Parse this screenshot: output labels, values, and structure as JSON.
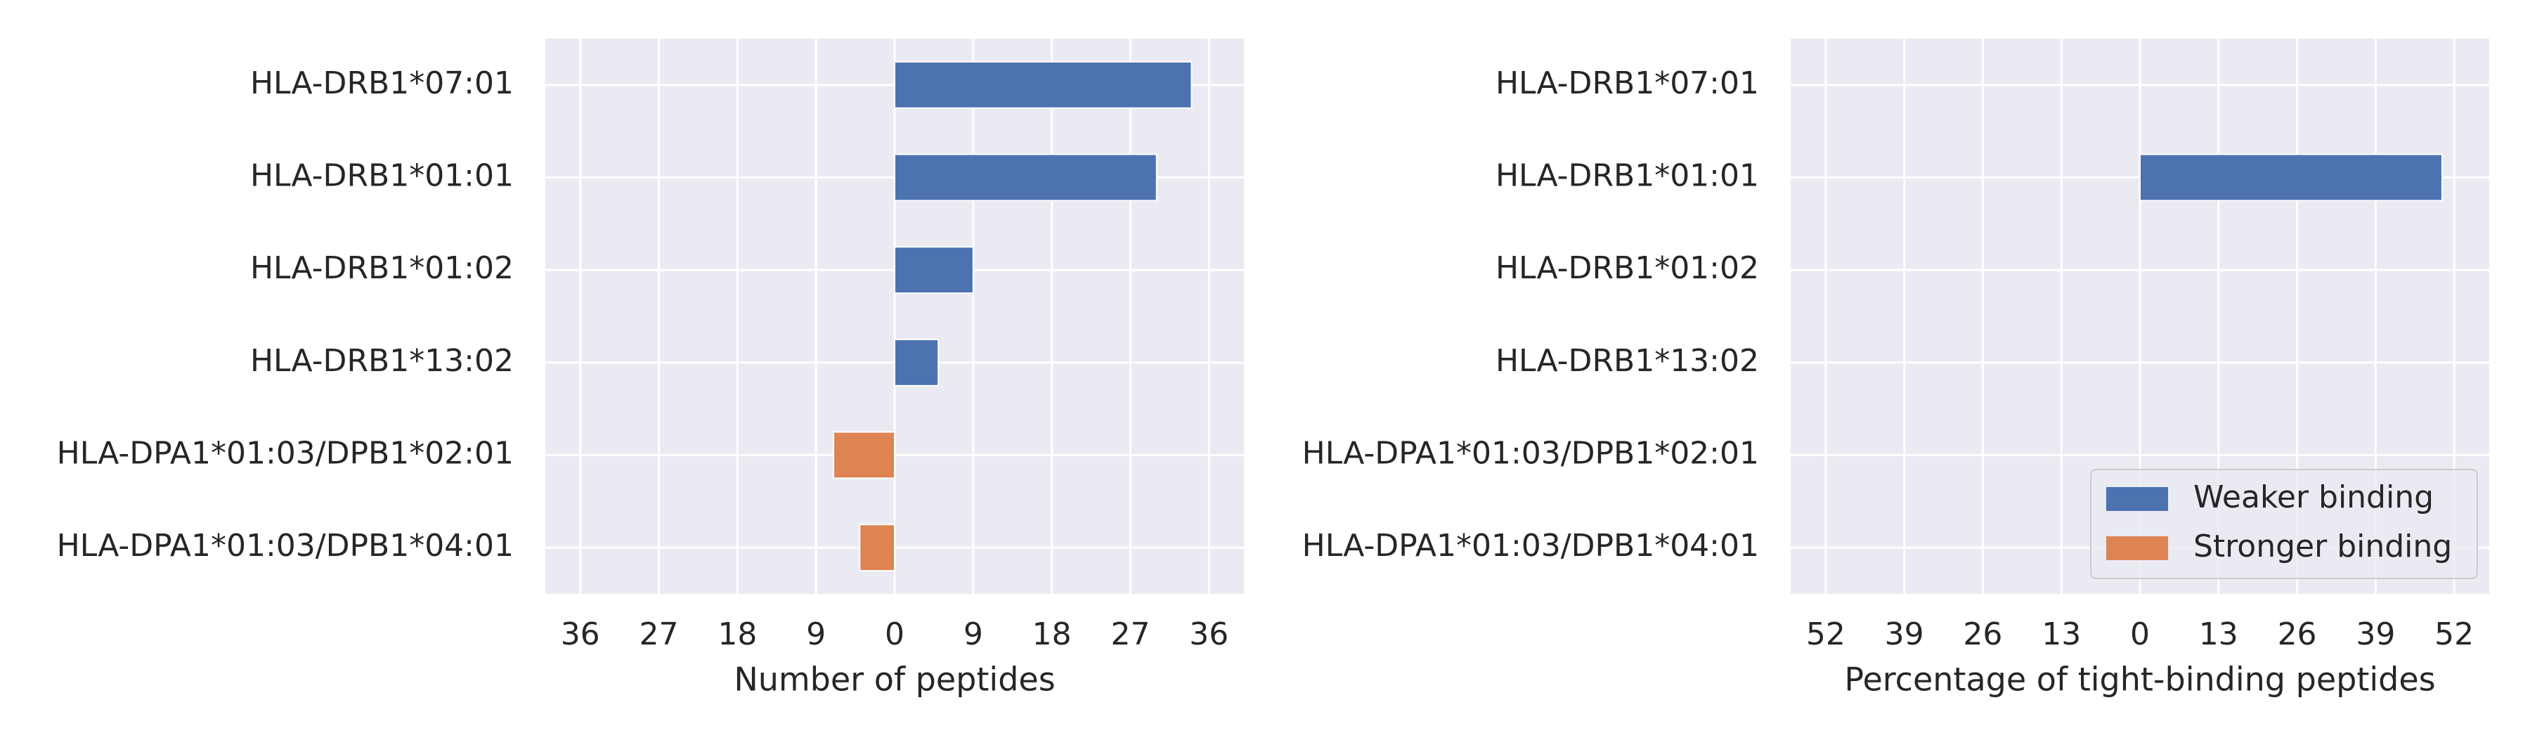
{
  "colors": {
    "panel_background": "#eaeaf2",
    "grid": "#ffffff",
    "weaker": "#4c72b0",
    "stronger": "#dd8452",
    "text": "#262626"
  },
  "chart_data": [
    {
      "type": "bar",
      "orientation": "horizontal",
      "categories": [
        "HLA-DRB1*07:01",
        "HLA-DRB1*01:01",
        "HLA-DRB1*01:02",
        "HLA-DRB1*13:02",
        "HLA-DPA1*01:03/DPB1*02:01",
        "HLA-DPA1*01:03/DPB1*04:01"
      ],
      "series": [
        {
          "name": "Weaker binding",
          "color": "#4c72b0",
          "values": [
            34,
            30,
            9,
            5,
            0,
            0
          ]
        },
        {
          "name": "Stronger binding",
          "color": "#dd8452",
          "values": [
            0,
            0,
            0,
            0,
            -7,
            -4
          ]
        }
      ],
      "xlabel": "Number of peptides",
      "xlim": [
        -40,
        40
      ],
      "ticks": [
        -36,
        -27,
        -18,
        -9,
        0,
        9,
        18,
        27,
        36
      ],
      "tick_labels": [
        "36",
        "27",
        "18",
        "9",
        "0",
        "9",
        "18",
        "27",
        "36"
      ],
      "grid": true,
      "legend": "none"
    },
    {
      "type": "bar",
      "orientation": "horizontal",
      "categories": [
        "HLA-DRB1*07:01",
        "HLA-DRB1*01:01",
        "HLA-DRB1*01:02",
        "HLA-DRB1*13:02",
        "HLA-DPA1*01:03/DPB1*02:01",
        "HLA-DPA1*01:03/DPB1*04:01"
      ],
      "series": [
        {
          "name": "Weaker binding",
          "color": "#4c72b0",
          "values": [
            0,
            50,
            0,
            0,
            0,
            0
          ]
        },
        {
          "name": "Stronger binding",
          "color": "#dd8452",
          "values": [
            0,
            0,
            0,
            0,
            0,
            0
          ]
        }
      ],
      "xlabel": "Percentage of tight-binding peptides",
      "xlim": [
        -57.8,
        57.8
      ],
      "ticks": [
        -52,
        -39,
        -26,
        -13,
        0,
        13,
        26,
        39,
        52
      ],
      "tick_labels": [
        "52",
        "39",
        "26",
        "13",
        "0",
        "13",
        "26",
        "39",
        "52"
      ],
      "grid": true,
      "legend": "lower-right"
    }
  ]
}
